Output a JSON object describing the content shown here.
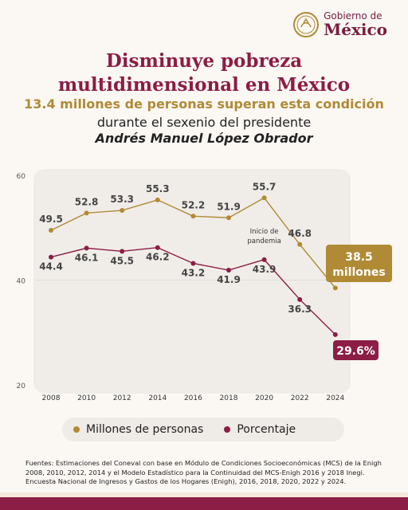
{
  "header": {
    "logo_top": "Gobierno de",
    "logo_bottom": "México"
  },
  "title_line1": "Disminuye pobreza",
  "title_line2": "multidimensional en México",
  "subtitle_line1": "13.4 millones de personas superan esta condición",
  "subtitle_line2": "durante el sexenio del presidente",
  "subtitle_line3": "Andrés Manuel López Obrador",
  "colors": {
    "gold": "#b08a35",
    "maroon": "#8c1d45"
  },
  "chart_data": {
    "type": "line",
    "x": [
      "2008",
      "2010",
      "2012",
      "2014",
      "2016",
      "2018",
      "2020",
      "2022",
      "2024"
    ],
    "ylim": [
      20,
      60
    ],
    "yticks": [
      "60",
      "40",
      "20"
    ],
    "grid": true,
    "series": [
      {
        "name": "Millones de personas",
        "color": "#b08a35",
        "values": [
          49.5,
          52.8,
          53.3,
          55.3,
          52.2,
          51.9,
          55.7,
          46.8,
          38.5
        ],
        "labels": [
          "49.5",
          "52.8",
          "53.3",
          "55.3",
          "52.2",
          "51.9",
          "55.7",
          "46.8",
          "38.5 millones"
        ]
      },
      {
        "name": "Porcentaje",
        "color": "#8c1d45",
        "values": [
          44.4,
          46.1,
          45.5,
          46.2,
          43.2,
          41.9,
          43.9,
          36.3,
          29.6
        ],
        "labels": [
          "44.4",
          "46.1",
          "45.5",
          "46.2",
          "43.2",
          "41.9",
          "43.9",
          "36.3",
          "29.6%"
        ]
      }
    ],
    "annotations": [
      "Inicio de",
      "pandemia"
    ],
    "legend_position": "bottom"
  },
  "sources": "Fuentes: Estimaciones del Coneval con base en Módulo de Condiciones Socioeconómicas (MCS) de la Enigh 2008, 2010, 2012, 2014 y el Modelo Estadístico para la Continuidad del MCS-Enigh 2016 y 2018 Inegi. Encuesta Nacional de Ingresos y Gastos de los Hogares (Enigh), 2016, 2018, 2020, 2022 y 2024."
}
